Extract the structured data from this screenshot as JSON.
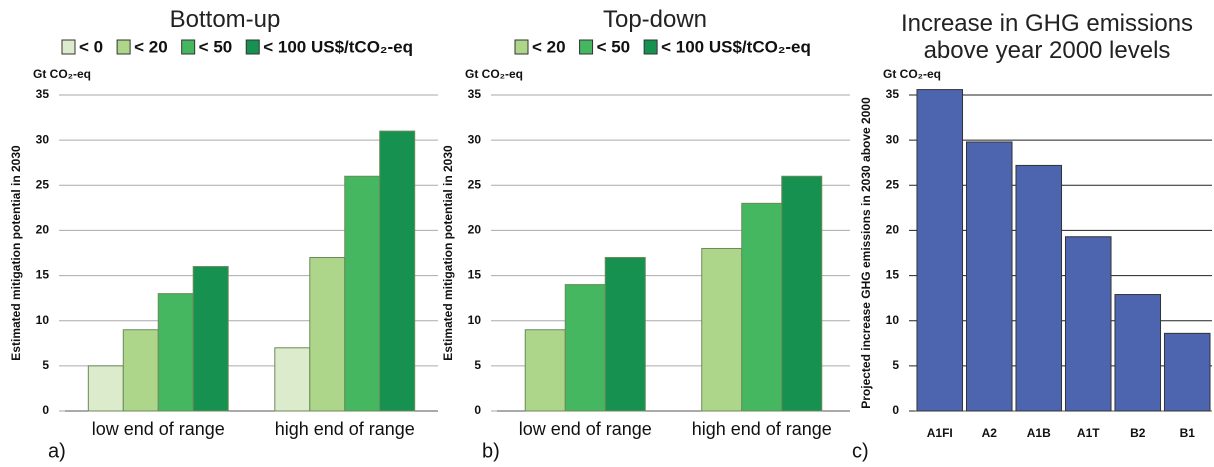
{
  "chart_data": [
    {
      "type": "grouped_bar",
      "panel_label": "a)",
      "title": "Bottom-up",
      "unit": "Gt CO₂-eq",
      "y_label": "Estimated mitigation potential in 2030",
      "categories": [
        "low end of range",
        "high end of range"
      ],
      "series": [
        {
          "name": "< 0",
          "color": "#dcebcb",
          "values": [
            5,
            7
          ]
        },
        {
          "name": "< 20",
          "color": "#aed68a",
          "values": [
            9,
            17
          ]
        },
        {
          "name": "< 50",
          "color": "#44b760",
          "values": [
            13,
            26
          ]
        },
        {
          "name": "< 100 US$/tCO₂-eq",
          "color": "#179150",
          "values": [
            16,
            31
          ]
        }
      ],
      "ylim": [
        0,
        35
      ],
      "yticks": [
        0,
        5,
        10,
        15,
        20,
        25,
        30,
        35
      ],
      "grid": true
    },
    {
      "type": "grouped_bar",
      "panel_label": "b)",
      "title": "Top-down",
      "unit": "Gt CO₂-eq",
      "y_label": "Estimated mitigation potential in 2030",
      "categories": [
        "low end of range",
        "high end of range"
      ],
      "series": [
        {
          "name": "< 20",
          "color": "#aed68a",
          "values": [
            9,
            18
          ]
        },
        {
          "name": "< 50",
          "color": "#44b760",
          "values": [
            14,
            23
          ]
        },
        {
          "name": "< 100 US$/tCO₂-eq",
          "color": "#179150",
          "values": [
            17,
            26
          ]
        }
      ],
      "ylim": [
        0,
        35
      ],
      "yticks": [
        0,
        5,
        10,
        15,
        20,
        25,
        30,
        35
      ],
      "grid": true
    },
    {
      "type": "bar",
      "panel_label": "c)",
      "title": "Increase in GHG emissions above year 2000 levels",
      "unit": "Gt CO₂-eq",
      "y_label": "Projected increase GHG emissions in 2030 above 2000",
      "categories": [
        "A1FI",
        "A2",
        "A1B",
        "A1T",
        "B2",
        "B1"
      ],
      "values": [
        35.6,
        29.8,
        27.2,
        19.3,
        12.9,
        8.6
      ],
      "color": "#4d64ae",
      "ylim": [
        0,
        35
      ],
      "yticks": [
        0,
        5,
        10,
        15,
        20,
        25,
        30,
        35
      ],
      "grid": true
    }
  ]
}
